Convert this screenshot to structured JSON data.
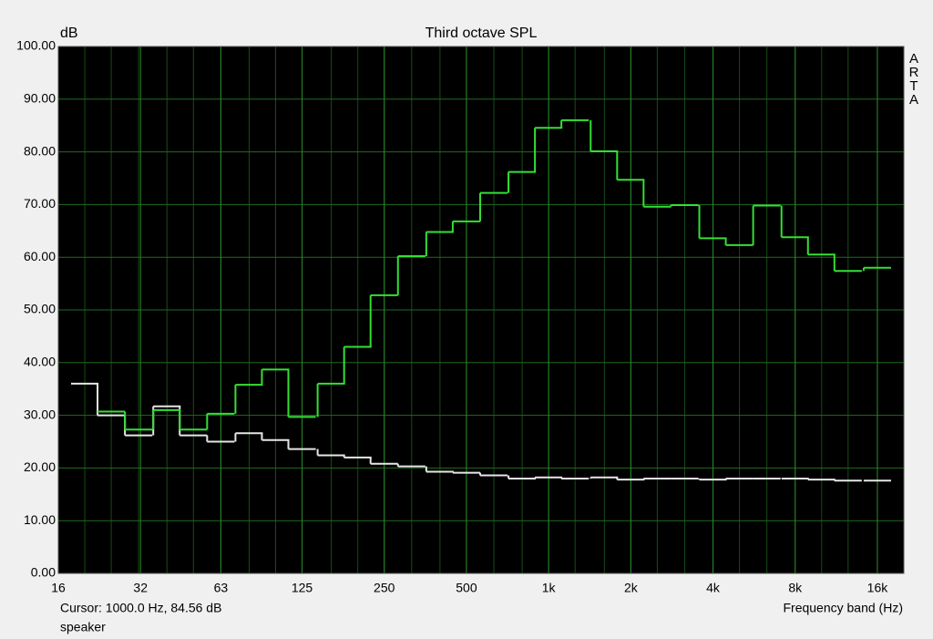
{
  "chart_data": {
    "type": "step",
    "title": "Third octave SPL",
    "y_label": "dB",
    "x_label": "Frequency band (Hz)",
    "cursor_readout": "Cursor:  1000.0 Hz, 84.56 dB",
    "source_name": "speaker",
    "logo_text": "ARTA",
    "x_scale": "log",
    "grid": true,
    "x": [
      20,
      25,
      31.5,
      40,
      50,
      63,
      80,
      100,
      125,
      160,
      200,
      250,
      315,
      400,
      500,
      630,
      800,
      1000,
      1250,
      1600,
      2000,
      2500,
      3150,
      4000,
      5000,
      6300,
      8000,
      10000,
      12500,
      16000
    ],
    "series": [
      {
        "color": "#e6e6e6",
        "values": [
          36.0,
          30.0,
          26.2,
          31.7,
          26.2,
          25.0,
          26.6,
          25.3,
          23.6,
          22.4,
          22.0,
          20.8,
          20.3,
          19.3,
          19.1,
          18.6,
          18.0,
          18.2,
          18.0,
          18.2,
          17.8,
          18.0,
          18.0,
          17.8,
          18.0,
          18.0,
          18.0,
          17.8,
          17.6,
          17.6
        ]
      },
      {
        "color": "#33e033",
        "values": [
          null,
          30.7,
          27.3,
          31.0,
          27.3,
          30.3,
          35.8,
          38.7,
          29.7,
          36.0,
          43.0,
          52.8,
          60.2,
          64.8,
          66.8,
          72.2,
          76.2,
          84.56,
          86.0,
          80.1,
          74.7,
          69.6,
          69.9,
          63.6,
          62.3,
          69.8,
          63.8,
          60.5,
          57.4,
          58.0
        ]
      }
    ],
    "xlim": [
      16,
      20000
    ],
    "xticks": [
      16,
      32,
      63,
      125,
      250,
      500,
      {
        "value": 1000,
        "label": "1k"
      },
      {
        "value": 2000,
        "label": "2k"
      },
      {
        "value": 4000,
        "label": "4k"
      },
      {
        "value": 8000,
        "label": "8k"
      },
      {
        "value": 16000,
        "label": "16k"
      }
    ],
    "ylim": [
      0,
      100
    ],
    "yticks": [
      {
        "value": 0,
        "label": "0.00"
      },
      {
        "value": 10,
        "label": "10.00"
      },
      {
        "value": 20,
        "label": "20.00"
      },
      {
        "value": 30,
        "label": "30.00"
      },
      {
        "value": 40,
        "label": "40.00"
      },
      {
        "value": 50,
        "label": "50.00"
      },
      {
        "value": 60,
        "label": "60.00"
      },
      {
        "value": 70,
        "label": "70.00"
      },
      {
        "value": 80,
        "label": "80.00"
      },
      {
        "value": 90,
        "label": "90.00"
      },
      {
        "value": 100,
        "label": "100.00"
      }
    ]
  }
}
